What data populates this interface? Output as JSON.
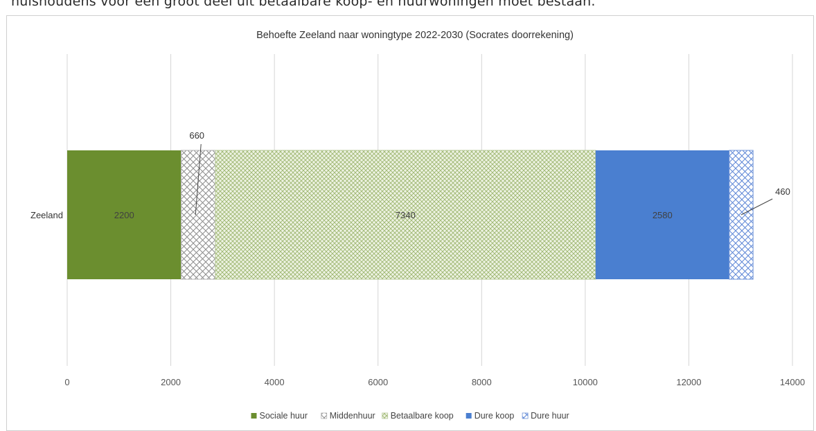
{
  "page_text": "huishoudens voor een groot deel uit betaalbare koop- en huurwoningen moet bestaan.",
  "chart_data": {
    "type": "bar",
    "orientation": "horizontal",
    "stacked": true,
    "title": "Behoefte Zeeland naar woningtype 2022-2030 (Socrates doorrekening)",
    "categories": [
      "Zeeland"
    ],
    "xlim": [
      0,
      14000
    ],
    "xticks": [
      0,
      2000,
      4000,
      6000,
      8000,
      10000,
      12000,
      14000
    ],
    "grid": "vertical",
    "legend_position": "bottom",
    "series": [
      {
        "name": "Sociale huur",
        "values": [
          2200
        ],
        "color": "#6b8e2f",
        "pattern": "solid",
        "label_placement": "inside"
      },
      {
        "name": "Middenhuur",
        "values": [
          660
        ],
        "color": "#9a9a9a",
        "pattern": "crosshatch-grey",
        "label_placement": "callout-above"
      },
      {
        "name": "Betaalbare koop",
        "values": [
          7340
        ],
        "color": "#8aa95a",
        "pattern": "crosshatch-green",
        "label_placement": "inside"
      },
      {
        "name": "Dure koop",
        "values": [
          2580
        ],
        "color": "#4a7fd0",
        "pattern": "solid",
        "label_placement": "inside"
      },
      {
        "name": "Dure huur",
        "values": [
          460
        ],
        "color": "#6f94d8",
        "pattern": "crosshatch-blue",
        "label_placement": "callout-right"
      }
    ]
  }
}
